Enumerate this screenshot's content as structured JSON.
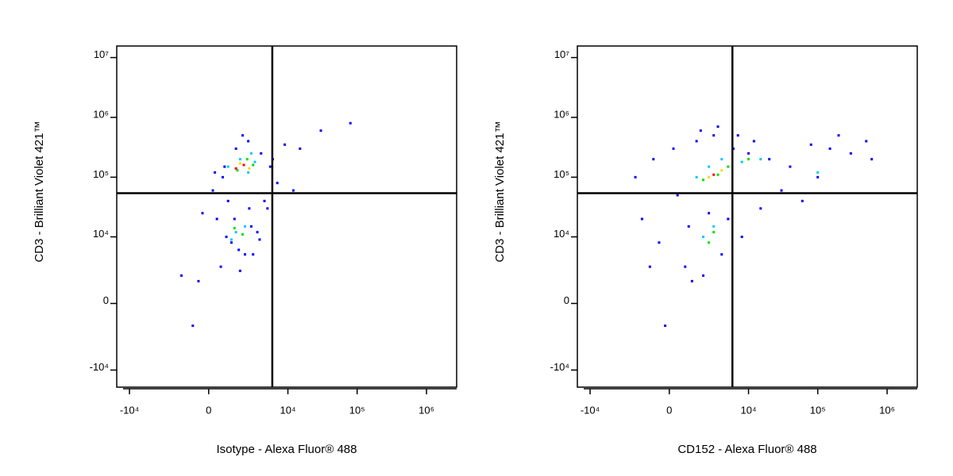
{
  "chart_data": [
    {
      "type": "scatter",
      "xscale": "biexponential",
      "yscale": "biexponential",
      "x_label": "Isotype - Alexa Fluor® 488",
      "y_label": "CD3 - Brilliant Violet 421™",
      "xlim": [
        -15300,
        2720000
      ],
      "ylim": [
        -19400,
        15600000
      ],
      "xticks": [
        {
          "value": -10000,
          "label": "-10⁴"
        },
        0,
        {
          "value": 10000,
          "label": "10⁴"
        },
        {
          "value": 100000,
          "label": "10⁵"
        },
        {
          "value": 1000000,
          "label": "10⁶"
        }
      ],
      "yticks": [
        {
          "value": -10000,
          "label": "-10⁴"
        },
        0,
        {
          "value": 10000,
          "label": "10⁴"
        },
        {
          "value": 100000,
          "label": "10⁵"
        },
        {
          "value": 1000000,
          "label": "10⁶"
        },
        {
          "value": 10000000,
          "label": "10⁷"
        }
      ],
      "quadrant": {
        "x": 5900,
        "y": 54000
      },
      "series": [
        {
          "color": "#0000ff",
          "x": [
            200,
            800,
            1500,
            2500,
            4000,
            6000,
            9000,
            15000,
            30000,
            80000,
            400,
            1200,
            2200,
            3500,
            5000,
            7000,
            12000,
            -500,
            -1500,
            -800,
            600,
            1800,
            2800,
            4500,
            3000,
            1000,
            2000,
            700,
            300,
            5500,
            1400,
            2600,
            900,
            1700,
            3800,
            -300
          ],
          "y": [
            60000,
            150000,
            300000,
            400000,
            250000,
            200000,
            350000,
            300000,
            600000,
            800000,
            20000,
            8000,
            5000,
            12000,
            30000,
            80000,
            60000,
            1500,
            2000,
            -1500,
            3000,
            2500,
            15000,
            40000,
            5000,
            40000,
            500000,
            100000,
            120000,
            150000,
            20000,
            30000,
            10000,
            6000,
            9000,
            25000
          ]
        },
        {
          "color": "#00c8ff",
          "x": [
            1000,
            1800,
            2500,
            3200,
            1500,
            2200,
            1200,
            2800
          ],
          "y": [
            150000,
            200000,
            120000,
            180000,
            12000,
            15000,
            9000,
            250000
          ]
        },
        {
          "color": "#00e000",
          "x": [
            1600,
            2400,
            3000,
            1400,
            2000
          ],
          "y": [
            130000,
            200000,
            160000,
            14000,
            11000
          ]
        },
        {
          "color": "#ffd800",
          "x": [
            1800,
            2600
          ],
          "y": [
            170000,
            140000
          ]
        },
        {
          "color": "#ff0000",
          "x": [
            1500,
            2100
          ],
          "y": [
            140000,
            160000
          ]
        }
      ]
    },
    {
      "type": "scatter",
      "xscale": "biexponential",
      "yscale": "biexponential",
      "x_label": "CD152 - Alexa Fluor® 488",
      "y_label": "CD3 - Brilliant Violet 421™",
      "xlim": [
        -15300,
        2720000
      ],
      "ylim": [
        -19400,
        15600000
      ],
      "xticks": [
        {
          "value": -10000,
          "label": "-10⁴"
        },
        0,
        {
          "value": 10000,
          "label": "10⁴"
        },
        {
          "value": 100000,
          "label": "10⁵"
        },
        {
          "value": 1000000,
          "label": "10⁶"
        }
      ],
      "yticks": [
        {
          "value": -10000,
          "label": "-10⁴"
        },
        0,
        {
          "value": 10000,
          "label": "10⁴"
        },
        {
          "value": 100000,
          "label": "10⁵"
        },
        {
          "value": 1000000,
          "label": "10⁶"
        },
        {
          "value": 10000000,
          "label": "10⁷"
        }
      ],
      "quadrant": {
        "x": 5800,
        "y": 54000
      },
      "series": [
        {
          "color": "#0000ff",
          "x": [
            -2000,
            -800,
            200,
            1500,
            3000,
            6000,
            10000,
            20000,
            40000,
            80000,
            150000,
            300000,
            500000,
            600000,
            -1500,
            -500,
            800,
            2000,
            4000,
            8000,
            15000,
            30000,
            60000,
            1000,
            2500,
            5000,
            -1000,
            400,
            1800,
            3500,
            7000,
            12000,
            100000,
            200000,
            -200,
            1200
          ],
          "y": [
            100000,
            200000,
            300000,
            400000,
            500000,
            300000,
            250000,
            200000,
            150000,
            350000,
            300000,
            250000,
            400000,
            200000,
            20000,
            8000,
            3000,
            2000,
            5000,
            10000,
            30000,
            60000,
            40000,
            15000,
            25000,
            20000,
            3000,
            50000,
            600000,
            700000,
            500000,
            400000,
            100000,
            500000,
            -1500,
            1500
          ]
        },
        {
          "color": "#00c8ff",
          "x": [
            1500,
            2500,
            4000,
            8000,
            15000,
            3000,
            2000,
            100000
          ],
          "y": [
            100000,
            150000,
            200000,
            180000,
            200000,
            15000,
            10000,
            120000
          ]
        },
        {
          "color": "#00e000",
          "x": [
            2000,
            3500,
            5000,
            10000,
            3000,
            2500
          ],
          "y": [
            90000,
            110000,
            150000,
            200000,
            12000,
            8000
          ]
        },
        {
          "color": "#ffd800",
          "x": [
            2500,
            4000
          ],
          "y": [
            100000,
            130000
          ]
        },
        {
          "color": "#ff0000",
          "x": [
            3000
          ],
          "y": [
            110000
          ]
        }
      ]
    }
  ]
}
